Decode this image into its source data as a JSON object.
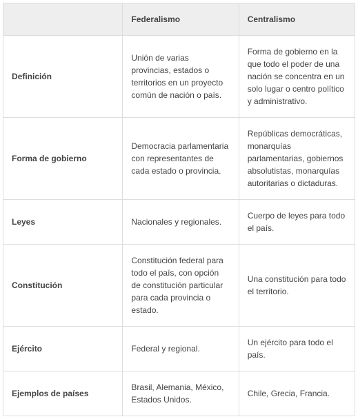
{
  "table": {
    "type": "table",
    "background_color": "#ffffff",
    "header_bg": "#eeeeee",
    "border_color": "#dddddd",
    "text_color": "#444444",
    "font_family": "Verdana",
    "font_size_pt": 9,
    "line_height": 1.5,
    "column_widths_pct": [
      34,
      33,
      33
    ],
    "columns": [
      "",
      "Federalismo",
      "Centralismo"
    ],
    "rows": [
      {
        "label": "Definición",
        "federalismo": "Unión de varias provincias, estados o territorios en un proyecto común de nación o país.",
        "centralismo": "Forma de gobierno en la que todo el poder de una nación se concentra en un solo lugar o centro político y administrativo."
      },
      {
        "label": "Forma de gobierno",
        "federalismo": "Democracia parlamentaria con representantes de cada estado o provincia.",
        "centralismo": "Repúblicas democráticas, monarquías parlamentarias, gobiernos absolutistas, monarquías autoritarias o dictaduras."
      },
      {
        "label": "Leyes",
        "federalismo": "Nacionales y regionales.",
        "centralismo": "Cuerpo de leyes para todo el país."
      },
      {
        "label": "Constitución",
        "federalismo": "Constitución federal para todo el país, con opción de constitución particular para cada provincia o estado.",
        "centralismo": "Una constitución para todo el territorio."
      },
      {
        "label": "Ejército",
        "federalismo": "Federal y regional.",
        "centralismo": "Un ejército para todo el país."
      },
      {
        "label": "Ejemplos de países",
        "federalismo": "Brasil, Alemania, México, Estados Unidos.",
        "centralismo": "Chile, Grecia, Francia."
      }
    ]
  }
}
